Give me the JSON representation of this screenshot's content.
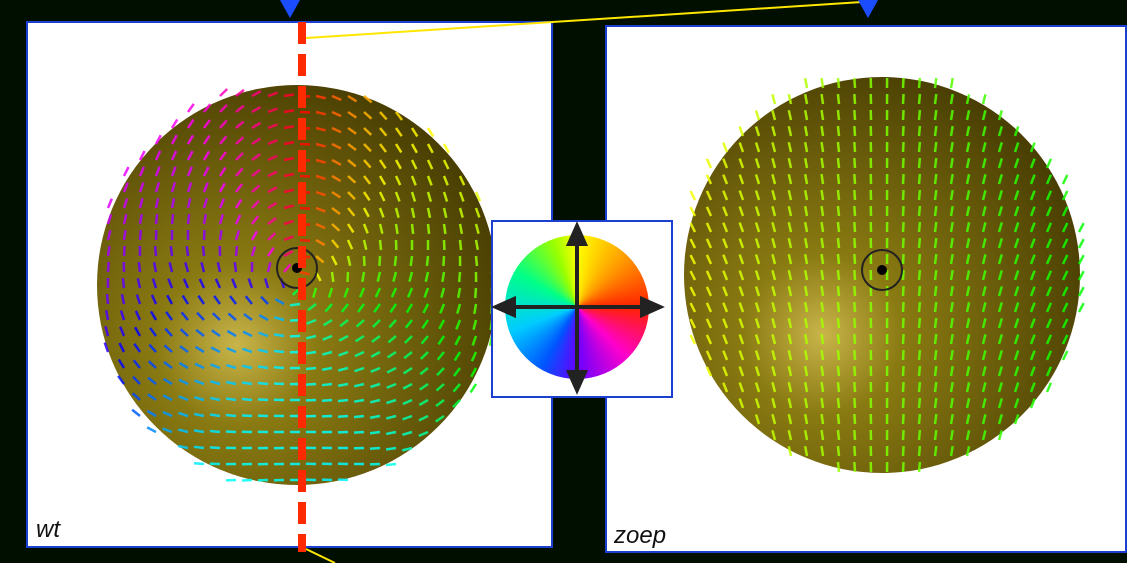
{
  "panels": [
    {
      "label": "wt"
    },
    {
      "label": "zoep"
    }
  ]
}
